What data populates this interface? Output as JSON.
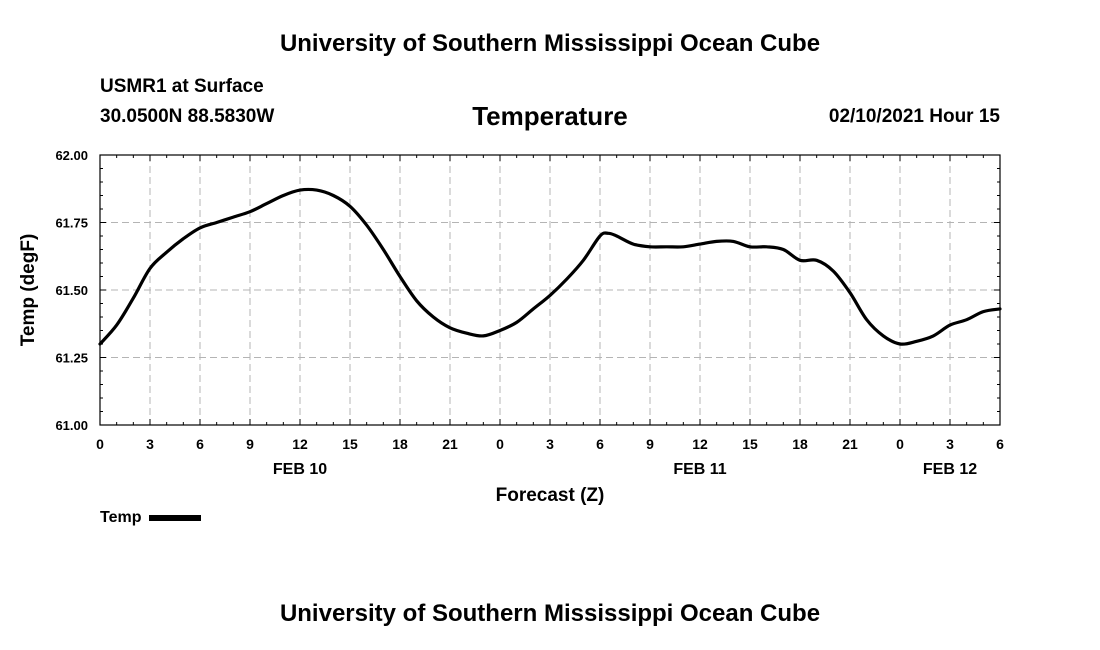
{
  "banner": "University of Southern Mississippi Ocean Cube",
  "station": {
    "name": "USMR1 at Surface",
    "coords": "30.0500N 88.5830W"
  },
  "run_time": "02/10/2021 Hour 15",
  "legend": {
    "label": "Temp",
    "color": "#000000"
  },
  "chart_data": {
    "type": "line",
    "title": "Temperature",
    "xlabel": "Forecast (Z)",
    "ylabel": "Temp (degF)",
    "ylim": [
      61.0,
      62.0
    ],
    "yticks": [
      "61.00",
      "61.25",
      "61.50",
      "61.75",
      "62.00"
    ],
    "y_tick_values": [
      61.0,
      61.25,
      61.5,
      61.75,
      62.0
    ],
    "xlim": [
      0,
      54
    ],
    "xticks": [
      "0",
      "3",
      "6",
      "9",
      "12",
      "15",
      "18",
      "21",
      "0",
      "3",
      "6",
      "9",
      "12",
      "15",
      "18",
      "21",
      "0",
      "3",
      "6"
    ],
    "x_tick_values": [
      0,
      3,
      6,
      9,
      12,
      15,
      18,
      21,
      24,
      27,
      30,
      33,
      36,
      39,
      42,
      45,
      48,
      51,
      54
    ],
    "day_labels": [
      {
        "text": "FEB 10",
        "x": 12
      },
      {
        "text": "FEB 11",
        "x": 36
      },
      {
        "text": "FEB 12",
        "x": 51
      }
    ],
    "grid": true,
    "series": [
      {
        "name": "Temp",
        "color": "#000000",
        "x": [
          0,
          1,
          2,
          3,
          4,
          5,
          6,
          7,
          8,
          9,
          10,
          11,
          12,
          13,
          14,
          15,
          16,
          17,
          18,
          19,
          20,
          21,
          22,
          23,
          24,
          25,
          26,
          27,
          28,
          29,
          30,
          30.5,
          31,
          32,
          33,
          34,
          35,
          36,
          37,
          38,
          39,
          40,
          41,
          42,
          43,
          44,
          45,
          46,
          47,
          48,
          49,
          50,
          51,
          52,
          53,
          54
        ],
        "y": [
          61.3,
          61.37,
          61.47,
          61.58,
          61.64,
          61.69,
          61.73,
          61.75,
          61.77,
          61.79,
          61.82,
          61.85,
          61.87,
          61.87,
          61.85,
          61.81,
          61.74,
          61.65,
          61.55,
          61.46,
          61.4,
          61.36,
          61.34,
          61.33,
          61.35,
          61.38,
          61.43,
          61.48,
          61.54,
          61.61,
          61.7,
          61.71,
          61.7,
          61.67,
          61.66,
          61.66,
          61.66,
          61.67,
          61.68,
          61.68,
          61.66,
          61.66,
          61.65,
          61.61,
          61.61,
          61.57,
          61.49,
          61.39,
          61.33,
          61.3,
          61.31,
          61.33,
          61.37,
          61.39,
          61.42,
          61.43
        ]
      }
    ]
  }
}
